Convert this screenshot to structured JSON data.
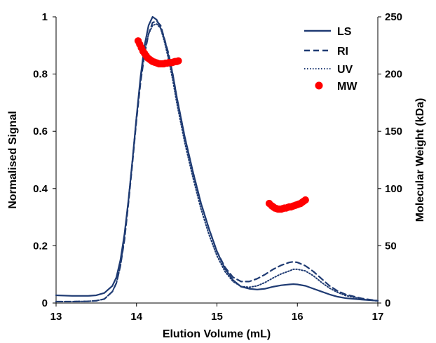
{
  "chart_data": {
    "type": "line",
    "title": "",
    "xlabel": "Elution Volume (mL)",
    "ylabel": "Normalised Signal",
    "y2label": "Molecular Weight (kDa)",
    "xlim": [
      13,
      17
    ],
    "ylim": [
      0,
      1
    ],
    "y2lim": [
      0,
      250
    ],
    "x_ticks": [
      13,
      14,
      15,
      16,
      17
    ],
    "y_ticks": [
      0,
      0.2,
      0.4,
      0.6,
      0.8,
      1
    ],
    "y_tick_labels": [
      "0",
      "0.2",
      "0.4",
      "0.6",
      "0.8",
      "1"
    ],
    "y2_ticks": [
      0,
      50,
      100,
      150,
      200,
      250
    ],
    "grid": false,
    "legend_position": "top-right",
    "colors": {
      "LS": "#1f3b73",
      "RI": "#1f3b73",
      "UV": "#1f3b73",
      "MW": "#ff0000"
    },
    "series": [
      {
        "name": "LS",
        "axis": "left",
        "style": "solid",
        "x": [
          13.0,
          13.2,
          13.4,
          13.5,
          13.6,
          13.7,
          13.75,
          13.8,
          13.85,
          13.9,
          13.95,
          14.0,
          14.05,
          14.1,
          14.15,
          14.2,
          14.25,
          14.3,
          14.35,
          14.4,
          14.45,
          14.5,
          14.6,
          14.7,
          14.8,
          14.9,
          15.0,
          15.1,
          15.2,
          15.3,
          15.4,
          15.5,
          15.6,
          15.7,
          15.8,
          15.9,
          15.95,
          16.0,
          16.1,
          16.2,
          16.3,
          16.4,
          16.5,
          16.6,
          16.8,
          17.0
        ],
        "y": [
          0.027,
          0.025,
          0.025,
          0.027,
          0.035,
          0.06,
          0.09,
          0.15,
          0.24,
          0.36,
          0.5,
          0.65,
          0.79,
          0.9,
          0.97,
          1.0,
          0.99,
          0.96,
          0.92,
          0.86,
          0.8,
          0.72,
          0.58,
          0.46,
          0.35,
          0.26,
          0.18,
          0.12,
          0.08,
          0.057,
          0.05,
          0.047,
          0.05,
          0.057,
          0.062,
          0.065,
          0.066,
          0.065,
          0.06,
          0.05,
          0.04,
          0.03,
          0.022,
          0.017,
          0.012,
          0.008
        ]
      },
      {
        "name": "RI",
        "axis": "left",
        "style": "dashed",
        "x": [
          13.0,
          13.2,
          13.4,
          13.5,
          13.6,
          13.7,
          13.75,
          13.8,
          13.85,
          13.9,
          13.95,
          14.0,
          14.05,
          14.1,
          14.15,
          14.2,
          14.25,
          14.3,
          14.35,
          14.4,
          14.45,
          14.5,
          14.6,
          14.7,
          14.8,
          14.9,
          15.0,
          15.1,
          15.2,
          15.3,
          15.4,
          15.5,
          15.6,
          15.7,
          15.8,
          15.9,
          15.95,
          16.0,
          16.1,
          16.2,
          16.3,
          16.4,
          16.5,
          16.6,
          16.8,
          17.0
        ],
        "y": [
          0.005,
          0.005,
          0.006,
          0.008,
          0.014,
          0.04,
          0.07,
          0.13,
          0.22,
          0.35,
          0.49,
          0.64,
          0.77,
          0.87,
          0.94,
          0.98,
          0.985,
          0.97,
          0.92,
          0.87,
          0.8,
          0.72,
          0.58,
          0.46,
          0.35,
          0.26,
          0.18,
          0.125,
          0.09,
          0.075,
          0.075,
          0.085,
          0.1,
          0.118,
          0.132,
          0.142,
          0.144,
          0.142,
          0.13,
          0.11,
          0.085,
          0.06,
          0.042,
          0.03,
          0.016,
          0.008
        ]
      },
      {
        "name": "UV",
        "axis": "left",
        "style": "dotted",
        "x": [
          13.0,
          13.2,
          13.4,
          13.5,
          13.6,
          13.7,
          13.75,
          13.8,
          13.85,
          13.9,
          13.95,
          14.0,
          14.05,
          14.1,
          14.15,
          14.2,
          14.25,
          14.3,
          14.35,
          14.4,
          14.45,
          14.5,
          14.6,
          14.7,
          14.8,
          14.9,
          15.0,
          15.1,
          15.2,
          15.3,
          15.4,
          15.5,
          15.6,
          15.7,
          15.8,
          15.9,
          15.95,
          16.0,
          16.1,
          16.2,
          16.3,
          16.4,
          16.5,
          16.6,
          16.8,
          17.0
        ],
        "y": [
          0.005,
          0.005,
          0.006,
          0.008,
          0.014,
          0.04,
          0.07,
          0.13,
          0.23,
          0.36,
          0.5,
          0.65,
          0.78,
          0.88,
          0.94,
          0.97,
          0.975,
          0.96,
          0.91,
          0.85,
          0.78,
          0.7,
          0.56,
          0.44,
          0.33,
          0.24,
          0.165,
          0.11,
          0.075,
          0.058,
          0.055,
          0.06,
          0.072,
          0.088,
          0.102,
          0.112,
          0.118,
          0.118,
          0.112,
          0.095,
          0.072,
          0.052,
          0.037,
          0.026,
          0.014,
          0.007
        ]
      },
      {
        "name": "MW",
        "axis": "right",
        "style": "markers",
        "x": [
          14.02,
          14.04,
          14.06,
          14.08,
          14.1,
          14.12,
          14.14,
          14.16,
          14.18,
          14.2,
          14.22,
          14.24,
          14.26,
          14.28,
          14.3,
          14.32,
          14.34,
          14.36,
          14.38,
          14.4,
          14.42,
          14.44,
          14.46,
          14.48,
          14.5,
          14.52,
          15.65,
          15.68,
          15.7,
          15.72,
          15.74,
          15.76,
          15.78,
          15.8,
          15.82,
          15.84,
          15.86,
          15.88,
          15.9,
          15.92,
          15.94,
          15.96,
          15.98,
          16.0,
          16.02,
          16.04,
          16.06,
          16.08,
          16.1
        ],
        "y": [
          229,
          226,
          223,
          220,
          218,
          216,
          214,
          213,
          212,
          211,
          210.5,
          210,
          209.5,
          209,
          209,
          209,
          209,
          209.5,
          209.5,
          210,
          210,
          210,
          210.5,
          211,
          211,
          211.5,
          87,
          85,
          84,
          83,
          82.5,
          82,
          82,
          82,
          82.5,
          83,
          83,
          83.5,
          84,
          84,
          84.5,
          85,
          85.5,
          86,
          86.5,
          87,
          88,
          89,
          90
        ]
      }
    ]
  },
  "x_axis": {
    "title": "Elution Volume (mL)"
  },
  "y_axis": {
    "title": "Normalised Signal"
  },
  "y2_axis": {
    "title": "Molecular Weight (kDa)"
  },
  "legend": {
    "items": [
      {
        "label": "LS"
      },
      {
        "label": "RI"
      },
      {
        "label": "UV"
      },
      {
        "label": "MW"
      }
    ]
  }
}
